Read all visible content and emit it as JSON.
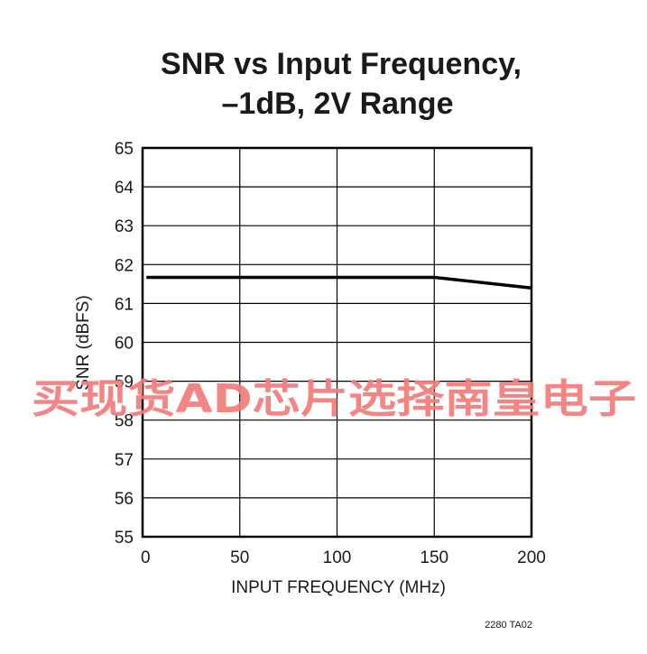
{
  "chart_data": {
    "type": "line",
    "title_lines": [
      "SNR vs Input Frequency,",
      "–1dB, 2V Range"
    ],
    "xlabel": "INPUT FREQUENCY (MHz)",
    "ylabel": "SNR (dBFS)",
    "xlim": [
      0,
      200
    ],
    "ylim": [
      55,
      65
    ],
    "xticks": [
      0,
      50,
      100,
      150,
      200
    ],
    "yticks": [
      55,
      56,
      57,
      58,
      59,
      60,
      61,
      62,
      63,
      64,
      65
    ],
    "grid": true,
    "series": [
      {
        "x": [
          2,
          150,
          200
        ],
        "y": [
          61.67,
          61.67,
          61.4
        ]
      }
    ],
    "figure_code": "2280 TA02",
    "watermark": "买现货AD芯片选择南皇电子",
    "colors": {
      "line": "#000000",
      "grid": "#000000",
      "watermark": "#f27b7b"
    }
  }
}
